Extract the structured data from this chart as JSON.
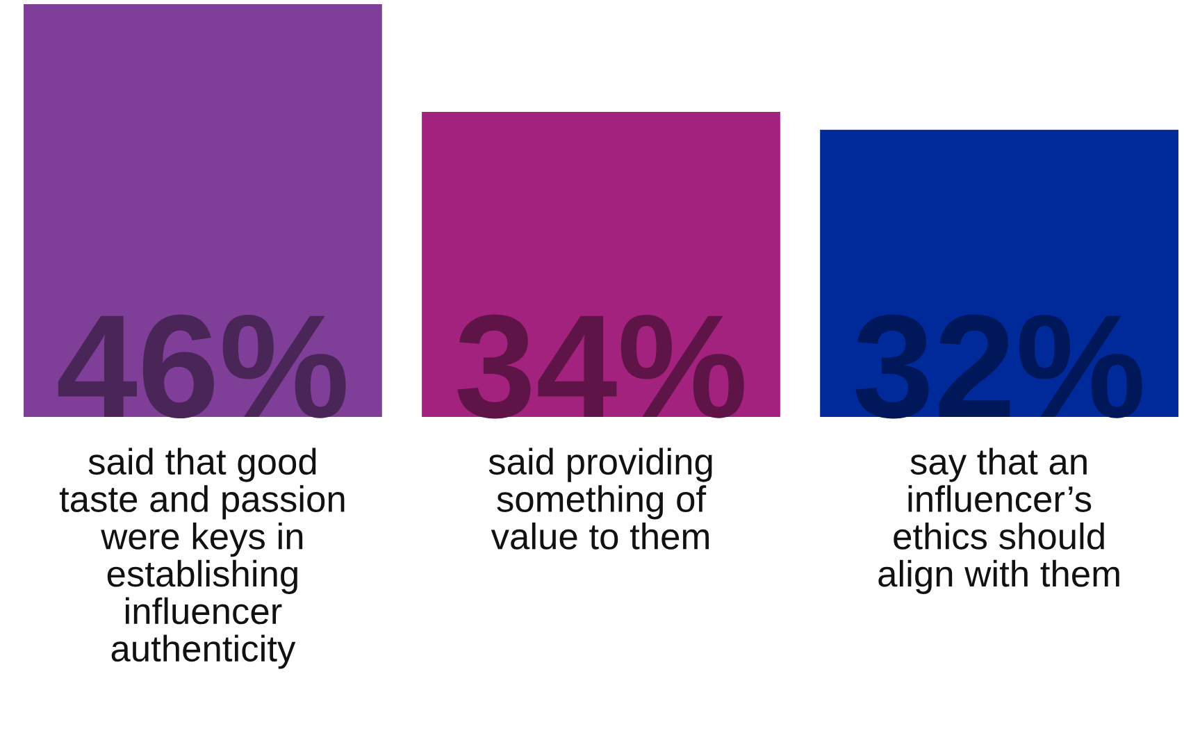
{
  "chart_data": {
    "type": "bar",
    "categories": [
      "said that good\ntaste and passion\nwere keys in\nestablishing\ninfluencer\nauthenticity",
      "said providing\nsomething of\nvalue to them",
      "say that an\ninfluencer’s\nethics should\nalign with them"
    ],
    "values": [
      46,
      34,
      32
    ],
    "colors": [
      "#7f3f98",
      "#a3227d",
      "#002a9a"
    ],
    "value_labels": [
      "46%",
      "34%",
      "32%"
    ]
  }
}
